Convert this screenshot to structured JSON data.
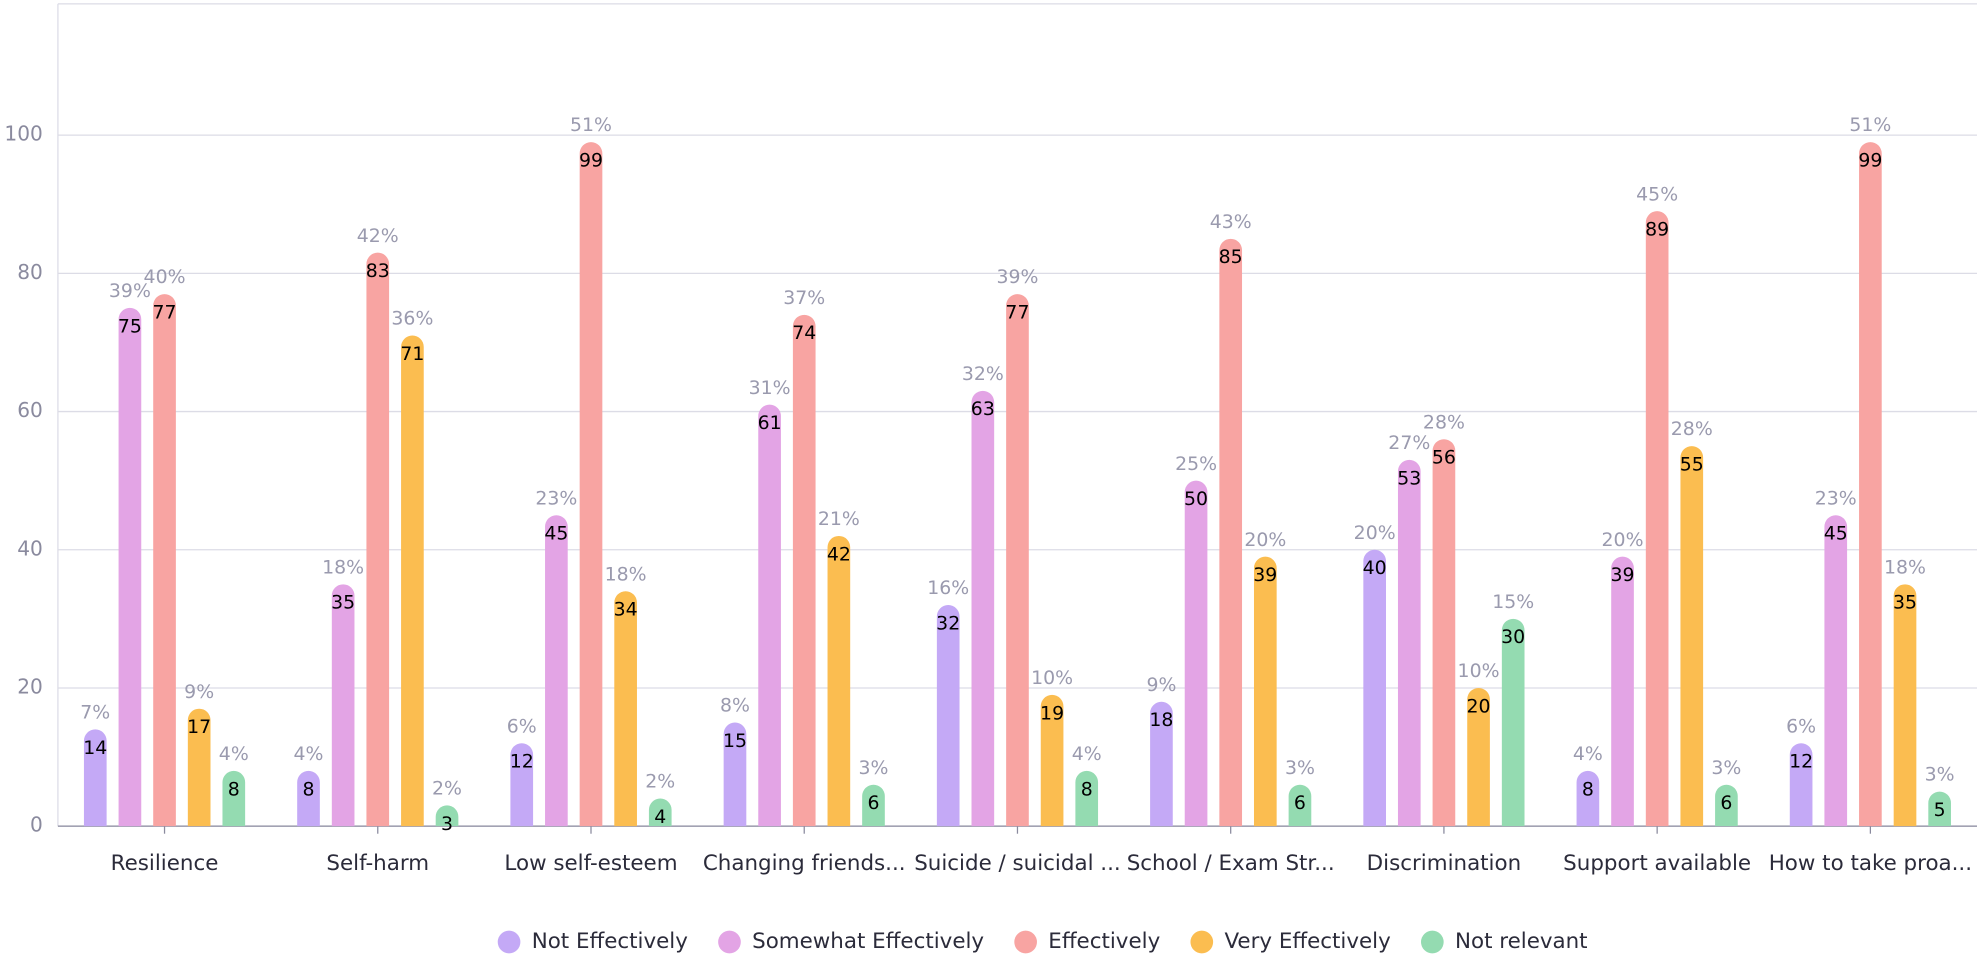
{
  "chart_data": {
    "type": "bar",
    "categories": [
      "Resilience",
      "Self-harm",
      "Low self-esteem",
      "Changing friends...",
      "Suicide / suicidal ...",
      "School / Exam Str...",
      "Discrimination",
      "Support available",
      "How to take proa..."
    ],
    "series": [
      {
        "name": "Not Effectively",
        "color": "#c4a9f6",
        "values": [
          14,
          8,
          12,
          15,
          32,
          18,
          40,
          8,
          12
        ],
        "percent_labels": [
          "7%",
          "4%",
          "6%",
          "8%",
          "16%",
          "9%",
          "20%",
          "4%",
          "6%"
        ]
      },
      {
        "name": "Somewhat Effectively",
        "color": "#e3a4e5",
        "values": [
          75,
          35,
          45,
          61,
          63,
          50,
          53,
          39,
          45
        ],
        "percent_labels": [
          "39%",
          "18%",
          "23%",
          "31%",
          "32%",
          "25%",
          "27%",
          "20%",
          "23%"
        ]
      },
      {
        "name": "Effectively",
        "color": "#f8a4a2",
        "values": [
          77,
          83,
          99,
          74,
          77,
          85,
          56,
          89,
          99
        ],
        "percent_labels": [
          "40%",
          "42%",
          "51%",
          "37%",
          "39%",
          "43%",
          "28%",
          "45%",
          "51%"
        ]
      },
      {
        "name": "Very Effectively",
        "color": "#fbbd50",
        "values": [
          17,
          71,
          34,
          42,
          19,
          39,
          20,
          55,
          35
        ],
        "percent_labels": [
          "9%",
          "36%",
          "18%",
          "21%",
          "10%",
          "20%",
          "10%",
          "28%",
          "18%"
        ]
      },
      {
        "name": "Not relevant",
        "color": "#94dbb1",
        "values": [
          8,
          3,
          4,
          6,
          8,
          6,
          30,
          6,
          5
        ],
        "percent_labels": [
          "4%",
          "2%",
          "2%",
          "3%",
          "4%",
          "3%",
          "15%",
          "3%",
          "3%"
        ]
      }
    ],
    "ylim": [
      0,
      119
    ],
    "yticks": [
      0,
      20,
      40,
      60,
      80,
      100
    ],
    "grid": true,
    "legend": "bottom"
  }
}
